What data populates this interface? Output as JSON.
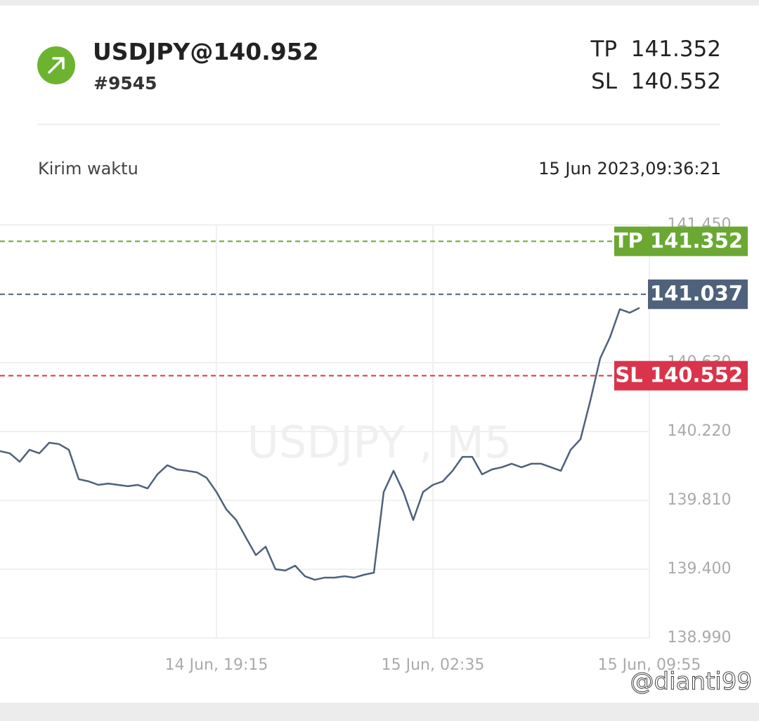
{
  "header": {
    "symbol": "USDJPY@140.952",
    "ticket": "#9545",
    "tp_label": "TP",
    "tp": "141.352",
    "sl_label": "SL",
    "sl": "140.552"
  },
  "info": {
    "label": "Kirim waktu",
    "value": "15 Jun 2023,09:36:21"
  },
  "chart_data": {
    "type": "line",
    "watermark": "USDJPY , M5",
    "series": [
      {
        "name": "USDJPY",
        "color": "#4f617b",
        "values": [
          140.103,
          140.09,
          140.04,
          140.111,
          140.09,
          140.153,
          140.145,
          140.111,
          139.936,
          139.923,
          139.902,
          139.91,
          139.902,
          139.894,
          139.902,
          139.881,
          139.965,
          140.019,
          139.994,
          139.986,
          139.977,
          139.944,
          139.86,
          139.756,
          139.693,
          139.588,
          139.484,
          139.534,
          139.4,
          139.392,
          139.421,
          139.358,
          139.337,
          139.35,
          139.35,
          139.358,
          139.35,
          139.367,
          139.379,
          139.86,
          139.986,
          139.86,
          139.693,
          139.86,
          139.902,
          139.923,
          139.986,
          140.069,
          140.069,
          139.965,
          139.994,
          140.007,
          140.028,
          140.007,
          140.028,
          140.028,
          140.007,
          139.986,
          140.111,
          140.174,
          140.404,
          140.655,
          140.781,
          140.948,
          140.927,
          140.956
        ]
      }
    ],
    "xlim": [
      0,
      66
    ],
    "xticks": [
      {
        "value": 22,
        "label": "14 Jun, 19:15"
      },
      {
        "value": 44,
        "label": "15 Jun, 02:35"
      },
      {
        "value": 66,
        "label": "15 Jun, 09:55"
      }
    ],
    "ylim": [
      138.99,
      141.45
    ],
    "yticks": [
      {
        "value": 138.99,
        "label": "138.990"
      },
      {
        "value": 139.4,
        "label": "139.400"
      },
      {
        "value": 139.81,
        "label": "139.810"
      },
      {
        "value": 140.22,
        "label": "140.220"
      },
      {
        "value": 140.63,
        "label": "140.630"
      },
      {
        "value": 141.45,
        "label": "141.450"
      }
    ],
    "grid": true,
    "levels": [
      {
        "name": "TP",
        "value": 141.352,
        "color": "#6aa832"
      },
      {
        "value": 141.037,
        "color": "#4f617b"
      },
      {
        "name": "SL",
        "value": 140.552,
        "color": "#d9344c"
      }
    ]
  },
  "credit": "@dianti99"
}
